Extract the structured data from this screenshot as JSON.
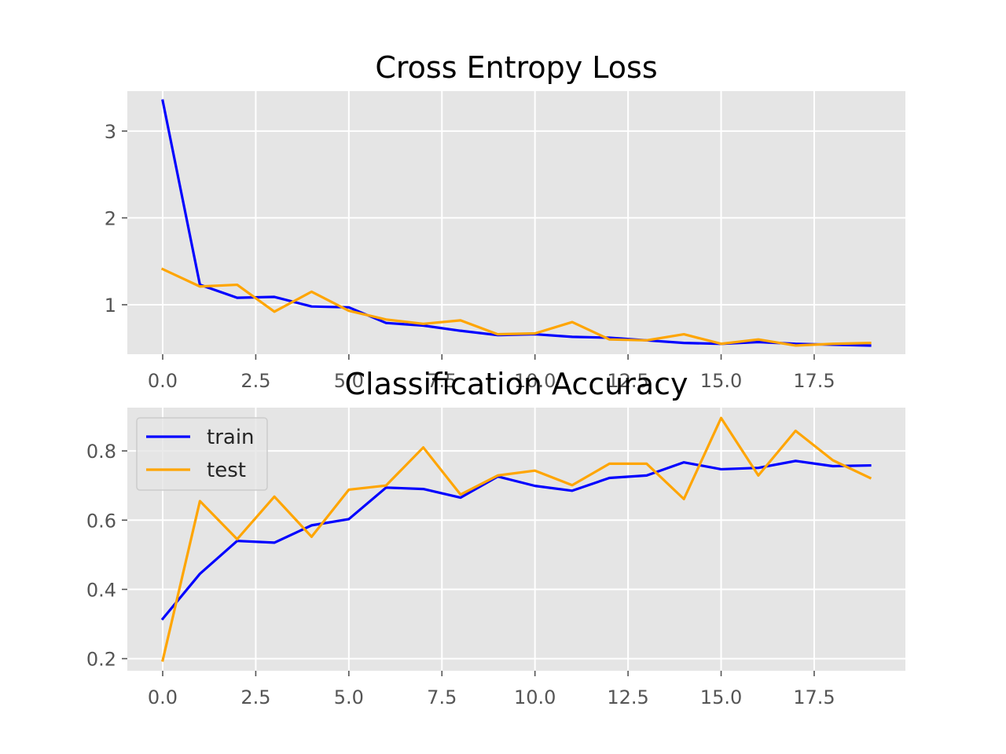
{
  "colors": {
    "axes_background": "#e5e5e5",
    "grid": "#ffffff",
    "train": "#0000ff",
    "test": "#ffa500",
    "tick_label": "#555555"
  },
  "chart_data": [
    {
      "type": "line",
      "title": "Cross Entropy Loss",
      "xlabel": "",
      "ylabel": "",
      "xlim": [
        -0.95,
        19.95
      ],
      "ylim": [
        0.43,
        3.46
      ],
      "xticks": [
        0.0,
        2.5,
        5.0,
        7.5,
        10.0,
        12.5,
        15.0,
        17.5
      ],
      "xtick_labels": [
        "0.0",
        "2.5",
        "5.0",
        "7.5",
        "10.0",
        "12.5",
        "15.0",
        "17.5"
      ],
      "yticks": [
        1,
        2,
        3
      ],
      "ytick_labels": [
        "1",
        "2",
        "3"
      ],
      "grid": true,
      "legend": null,
      "x": [
        0,
        1,
        2,
        3,
        4,
        5,
        6,
        7,
        8,
        9,
        10,
        11,
        12,
        13,
        14,
        15,
        16,
        17,
        18,
        19
      ],
      "series": [
        {
          "name": "train",
          "color": "#0000ff",
          "values": [
            3.35,
            1.23,
            1.08,
            1.09,
            0.98,
            0.97,
            0.79,
            0.76,
            0.7,
            0.65,
            0.66,
            0.63,
            0.62,
            0.59,
            0.56,
            0.55,
            0.57,
            0.55,
            0.54,
            0.53
          ]
        },
        {
          "name": "test",
          "color": "#ffa500",
          "values": [
            1.41,
            1.21,
            1.23,
            0.92,
            1.15,
            0.93,
            0.83,
            0.78,
            0.82,
            0.66,
            0.67,
            0.8,
            0.6,
            0.59,
            0.66,
            0.55,
            0.6,
            0.53,
            0.55,
            0.56
          ]
        }
      ]
    },
    {
      "type": "line",
      "title": "Classification Accuracy",
      "xlabel": "",
      "ylabel": "",
      "xlim": [
        -0.95,
        19.95
      ],
      "ylim": [
        0.165,
        0.925
      ],
      "xticks": [
        0.0,
        2.5,
        5.0,
        7.5,
        10.0,
        12.5,
        15.0,
        17.5
      ],
      "xtick_labels": [
        "0.0",
        "2.5",
        "5.0",
        "7.5",
        "10.0",
        "12.5",
        "15.0",
        "17.5"
      ],
      "yticks": [
        0.2,
        0.4,
        0.6,
        0.8
      ],
      "ytick_labels": [
        "0.2",
        "0.4",
        "0.6",
        "0.8"
      ],
      "grid": true,
      "legend": "upper-left",
      "x": [
        0,
        1,
        2,
        3,
        4,
        5,
        6,
        7,
        8,
        9,
        10,
        11,
        12,
        13,
        14,
        15,
        16,
        17,
        18,
        19
      ],
      "series": [
        {
          "name": "train",
          "color": "#0000ff",
          "values": [
            0.315,
            0.445,
            0.54,
            0.535,
            0.585,
            0.603,
            0.694,
            0.69,
            0.665,
            0.726,
            0.699,
            0.685,
            0.722,
            0.729,
            0.767,
            0.747,
            0.751,
            0.771,
            0.756,
            0.758
          ]
        },
        {
          "name": "test",
          "color": "#ffa500",
          "values": [
            0.195,
            0.655,
            0.545,
            0.668,
            0.552,
            0.688,
            0.7,
            0.81,
            0.674,
            0.729,
            0.743,
            0.701,
            0.763,
            0.763,
            0.661,
            0.895,
            0.729,
            0.858,
            0.773,
            0.722
          ]
        }
      ]
    }
  ]
}
